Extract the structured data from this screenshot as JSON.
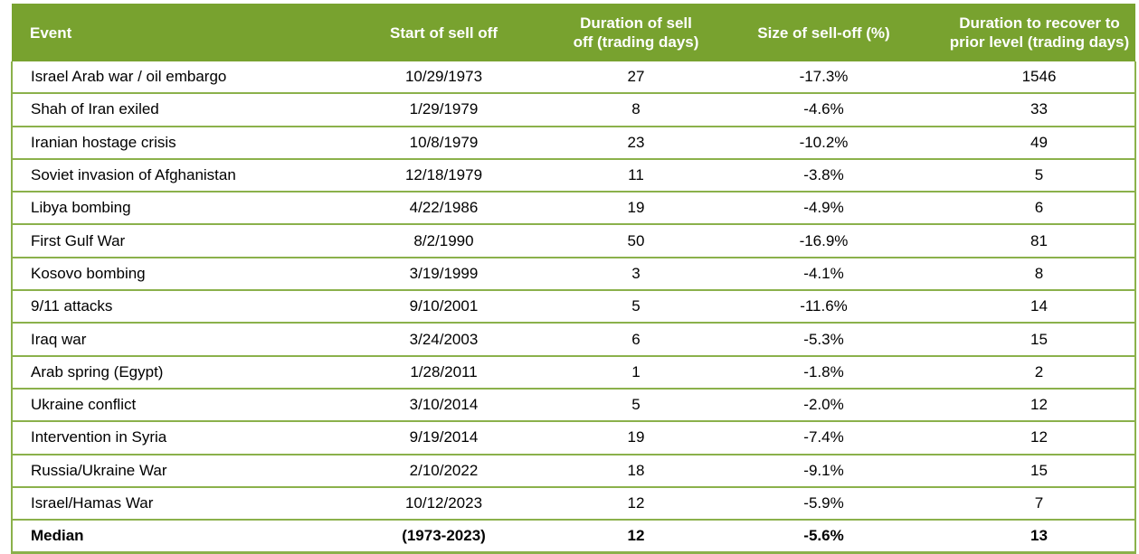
{
  "table": {
    "headers": [
      "Event",
      "Start of sell off",
      "Duration of sell off (trading days)",
      "Size of sell-off (%)",
      "Duration to recover to prior level (trading days)"
    ],
    "rows": [
      [
        "Israel Arab war / oil embargo",
        "10/29/1973",
        "27",
        "-17.3%",
        "1546"
      ],
      [
        "Shah of Iran exiled",
        "1/29/1979",
        "8",
        "-4.6%",
        "33"
      ],
      [
        "Iranian hostage crisis",
        "10/8/1979",
        "23",
        "-10.2%",
        "49"
      ],
      [
        "Soviet invasion of Afghanistan",
        "12/18/1979",
        "11",
        "-3.8%",
        "5"
      ],
      [
        "Libya bombing",
        "4/22/1986",
        "19",
        "-4.9%",
        "6"
      ],
      [
        "First Gulf War",
        "8/2/1990",
        "50",
        "-16.9%",
        "81"
      ],
      [
        "Kosovo bombing",
        "3/19/1999",
        "3",
        "-4.1%",
        "8"
      ],
      [
        "9/11 attacks",
        "9/10/2001",
        "5",
        "-11.6%",
        "14"
      ],
      [
        "Iraq war",
        "3/24/2003",
        "6",
        "-5.3%",
        "15"
      ],
      [
        "Arab spring (Egypt)",
        "1/28/2011",
        "1",
        "-1.8%",
        "2"
      ],
      [
        "Ukraine conflict",
        "3/10/2014",
        "5",
        "-2.0%",
        "12"
      ],
      [
        "Intervention in Syria",
        "9/19/2014",
        "19",
        "-7.4%",
        "12"
      ],
      [
        "Russia/Ukraine War",
        "2/10/2022",
        "18",
        "-9.1%",
        "15"
      ],
      [
        "Israel/Hamas War",
        "10/12/2023",
        "12",
        "-5.9%",
        "7"
      ]
    ],
    "median": [
      "Median",
      "(1973-2023)",
      "12",
      "-5.6%",
      "13"
    ]
  },
  "colors": {
    "header_bg": "#78a22f",
    "grid_line": "#8bb14b"
  }
}
